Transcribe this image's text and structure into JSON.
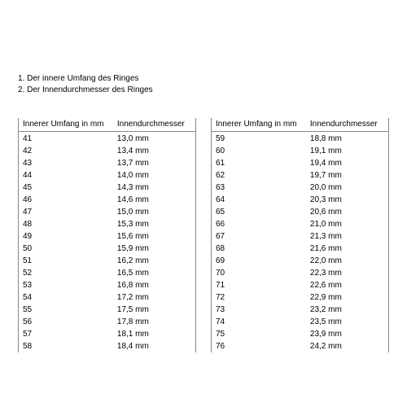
{
  "intro": {
    "line1": "1. Der innere Umfang des Ringes",
    "line2": "2. Der Innendurchmesser des Ringes"
  },
  "colors": {
    "background": "#ffffff",
    "text": "#000000",
    "border": "#888888"
  },
  "typography": {
    "font_family": "Arial",
    "font_size_pt": 8
  },
  "table_left": {
    "header": {
      "col1": "Innerer Umfang in mm",
      "col2": "Innendurchmesser"
    },
    "rows": [
      {
        "c1": "41",
        "c2": "13,0 mm"
      },
      {
        "c1": "42",
        "c2": "13,4 mm"
      },
      {
        "c1": "43",
        "c2": "13,7 mm"
      },
      {
        "c1": "44",
        "c2": "14,0 mm"
      },
      {
        "c1": "45",
        "c2": "14,3 mm"
      },
      {
        "c1": "46",
        "c2": "14,6 mm"
      },
      {
        "c1": "47",
        "c2": "15,0 mm"
      },
      {
        "c1": "48",
        "c2": "15,3 mm"
      },
      {
        "c1": "49",
        "c2": "15,6 mm"
      },
      {
        "c1": "50",
        "c2": "15,9 mm"
      },
      {
        "c1": "51",
        "c2": "16,2 mm"
      },
      {
        "c1": "52",
        "c2": "16,5 mm"
      },
      {
        "c1": "53",
        "c2": "16,8 mm"
      },
      {
        "c1": "54",
        "c2": "17,2 mm"
      },
      {
        "c1": "55",
        "c2": "17,5 mm"
      },
      {
        "c1": "56",
        "c2": "17,8 mm"
      },
      {
        "c1": "57",
        "c2": "18,1 mm"
      },
      {
        "c1": "58",
        "c2": "18,4 mm"
      }
    ]
  },
  "table_right": {
    "header": {
      "col1": "Innerer Umfang in mm",
      "col2": "Innendurchmesser"
    },
    "rows": [
      {
        "c1": "59",
        "c2": "18,8 mm"
      },
      {
        "c1": "60",
        "c2": "19,1 mm"
      },
      {
        "c1": "61",
        "c2": "19,4 mm"
      },
      {
        "c1": "62",
        "c2": "19,7 mm"
      },
      {
        "c1": "63",
        "c2": "20,0 mm"
      },
      {
        "c1": "64",
        "c2": "20,3 mm"
      },
      {
        "c1": "65",
        "c2": "20,6 mm"
      },
      {
        "c1": "66",
        "c2": "21,0 mm"
      },
      {
        "c1": "67",
        "c2": "21,3 mm"
      },
      {
        "c1": "68",
        "c2": "21,6 mm"
      },
      {
        "c1": "69",
        "c2": "22,0 mm"
      },
      {
        "c1": "70",
        "c2": "22,3 mm"
      },
      {
        "c1": "71",
        "c2": "22,6 mm"
      },
      {
        "c1": "72",
        "c2": "22,9 mm"
      },
      {
        "c1": "73",
        "c2": "23,2 mm"
      },
      {
        "c1": "74",
        "c2": "23,5 mm"
      },
      {
        "c1": "75",
        "c2": "23,9 mm"
      },
      {
        "c1": "76",
        "c2": "24,2 mm"
      }
    ]
  }
}
